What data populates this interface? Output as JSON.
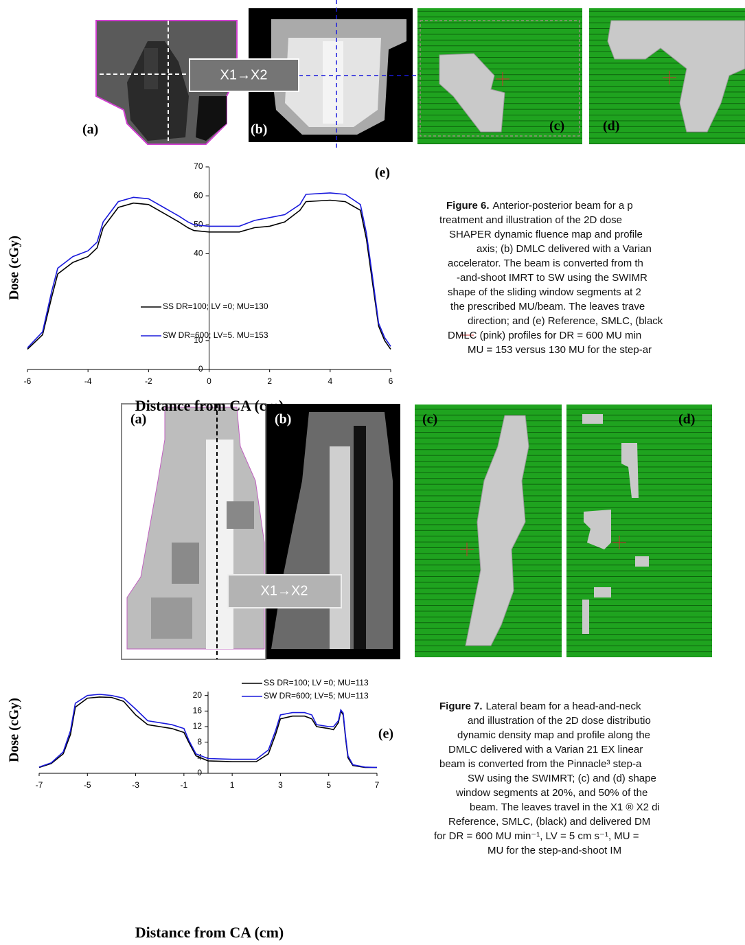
{
  "figure6": {
    "panels": {
      "a": "(a)",
      "b": "(b)",
      "c": "(c)",
      "d": "(d)"
    },
    "arrow_label": "X1→X2",
    "caption": {
      "label": "Figure 6.",
      "lines": [
        "Anterior-posterior beam for a p",
        "treatment and illustration of the 2D dose",
        "SHAPER dynamic fluence map and profile",
        "axis; (b) DMLC delivered with a Varian",
        "accelerator. The beam is converted from th",
        "-and-shoot IMRT to SW using the SWIMR",
        "shape of the sliding window segments at 2",
        "the prescribed MU/beam. The leaves trave",
        "direction; and (e) Reference, SMLC, (black",
        "DMLC (pink) profiles for DR = 600 MU min",
        "MU = 153 versus 130 MU for the step-ar"
      ]
    }
  },
  "figure7": {
    "panels": {
      "a": "(a)",
      "b": "(b)",
      "c": "(c)",
      "d": "(d)"
    },
    "arrow_label": "X1→X2",
    "caption": {
      "label": "Figure 7.",
      "lines": [
        "Lateral beam for a head-and-neck",
        "and illustration of the 2D dose distributio",
        "dynamic density map and profile along the",
        "DMLC delivered with a Varian 21 EX linear",
        "beam is converted from the Pinnacle³ step-a",
        "SW using the SWIMRT; (c) and (d) shape",
        "window segments at 20%, and 50% of the",
        "beam. The leaves travel in the X1 ® X2 di",
        "Reference, SMLC, (black) and delivered DM",
        "for DR = 600 MU min⁻¹, LV = 5 cm s⁻¹, MU =",
        "MU for the step-and-shoot IM"
      ]
    }
  },
  "chart_data": [
    {
      "type": "line",
      "panel_label": "(e)",
      "x_label": "Distance from CA (cm)",
      "y_label": "Dose (cGy)",
      "x": [
        -6,
        -5.5,
        -5.2,
        -5,
        -4.5,
        -4,
        -3.7,
        -3.5,
        -3,
        -2.5,
        -2,
        -1.5,
        -1,
        -0.7,
        -0.5,
        0,
        1,
        1.5,
        2,
        2.5,
        3,
        3.2,
        4,
        4.5,
        5,
        5.2,
        5.4,
        5.6,
        5.8,
        6
      ],
      "xlim": [
        -6,
        6
      ],
      "xticks": [
        -6,
        -4,
        -2,
        0,
        2,
        4,
        6
      ],
      "ylim": [
        0,
        70
      ],
      "yticks": [
        0,
        10,
        40,
        50,
        60,
        70
      ],
      "legend": "center",
      "series": [
        {
          "name": "SS  DR=100; LV =0; MU=130",
          "color": "#000000",
          "values": [
            7,
            12,
            25,
            33,
            37,
            39,
            42,
            49,
            56,
            57.5,
            57,
            54,
            51,
            49,
            48,
            47.5,
            47.5,
            49,
            49.5,
            51,
            55,
            58,
            58.5,
            58,
            55,
            45,
            30,
            15,
            10,
            7
          ]
        },
        {
          "name": "SW DR=600; LV=5. MU=153",
          "color": "#1a1adc",
          "values": [
            7.5,
            13,
            27,
            35,
            39,
            41,
            44,
            51,
            58,
            59.5,
            59,
            56,
            53,
            51,
            50,
            49.5,
            49.5,
            51.5,
            52.5,
            53.5,
            57,
            60.5,
            61,
            60.5,
            57,
            47,
            32,
            16,
            11,
            8
          ]
        }
      ]
    },
    {
      "type": "line",
      "panel_label": "(e)",
      "x_label": "Distance from CA (cm)",
      "y_label": "Dose (cGy)",
      "x": [
        -7,
        -6.5,
        -6,
        -5.7,
        -5.5,
        -5,
        -4.5,
        -4,
        -3.5,
        -3,
        -2.5,
        -2,
        -1.5,
        -1,
        -0.8,
        -0.5,
        0,
        1,
        2,
        2.5,
        2.8,
        3,
        3.5,
        4,
        4.3,
        4.5,
        5,
        5.2,
        5.4,
        5.5,
        5.6,
        5.7,
        5.8,
        6,
        6.5,
        7
      ],
      "xlim": [
        -7,
        7
      ],
      "xticks": [
        -7,
        -5,
        -3,
        -1,
        1,
        3,
        5,
        7
      ],
      "ylim": [
        0,
        21
      ],
      "yticks": [
        0,
        4,
        8,
        12,
        16,
        20
      ],
      "legend": "top",
      "series": [
        {
          "name": "SS DR=100; LV =0; MU=113",
          "color": "#000000",
          "values": [
            1.5,
            2.5,
            5,
            10,
            17,
            19.3,
            19.6,
            19.5,
            18.5,
            15,
            12.5,
            12,
            11.5,
            10.5,
            8,
            4.5,
            3.2,
            3,
            3,
            5,
            10,
            14,
            14.7,
            14.7,
            14,
            12,
            11.5,
            11.2,
            13,
            16,
            15,
            9,
            4,
            2,
            1.5,
            1.5
          ]
        },
        {
          "name": "SW DR=600; LV=5; MU=113",
          "color": "#1a1adc",
          "values": [
            1.6,
            2.7,
            5.5,
            11,
            18,
            20,
            20.3,
            20,
            19.3,
            16.5,
            13.5,
            13,
            12.5,
            11.5,
            8.5,
            5,
            3.8,
            3.6,
            3.6,
            6,
            11,
            15,
            15.6,
            15.6,
            15,
            12.5,
            12,
            12,
            13.5,
            16.3,
            15.5,
            9.5,
            4.5,
            2.2,
            1.6,
            1.5
          ]
        }
      ]
    }
  ]
}
